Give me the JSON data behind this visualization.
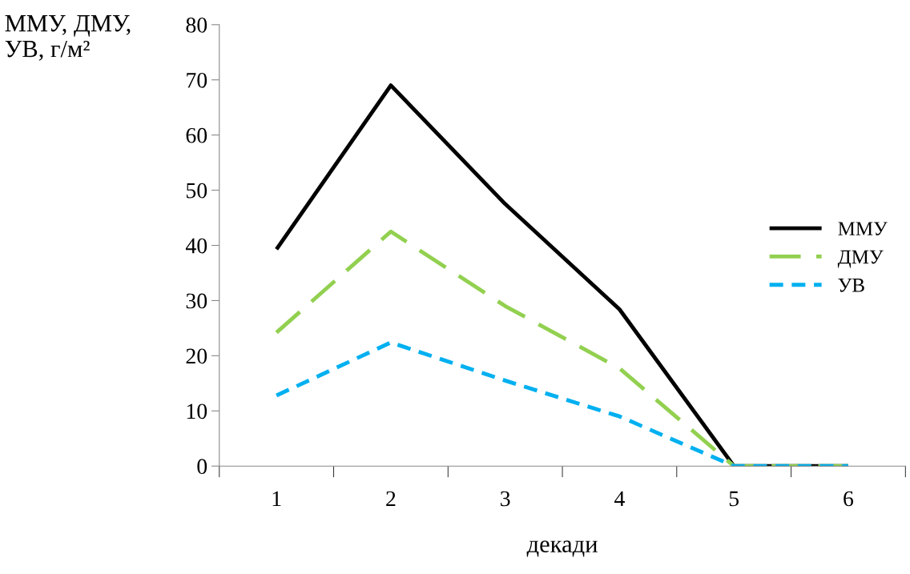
{
  "chart_data": {
    "type": "line",
    "ylabel": "ММУ, ДМУ,\nУВ, г/м²",
    "xlabel": "декади",
    "categories": [
      "1",
      "2",
      "3",
      "4",
      "5",
      "6"
    ],
    "series": [
      {
        "name": "ММУ",
        "color": "#000000",
        "line_style": "solid",
        "values": [
          39.3,
          69,
          47.5,
          28.4,
          0,
          0
        ]
      },
      {
        "name": "ДМУ",
        "color": "#92d050",
        "line_style": "dashed",
        "values": [
          24.2,
          42.5,
          29,
          17.7,
          0,
          0
        ]
      },
      {
        "name": "УВ",
        "color": "#00b0f0",
        "line_style": "dotted",
        "values": [
          12.8,
          22.4,
          15.5,
          9,
          0,
          0
        ]
      }
    ],
    "ylim": [
      0,
      80
    ],
    "yticks": [
      0,
      10,
      20,
      30,
      40,
      50,
      60,
      70,
      80
    ],
    "grid": false,
    "legend": "right",
    "marker": "none"
  }
}
